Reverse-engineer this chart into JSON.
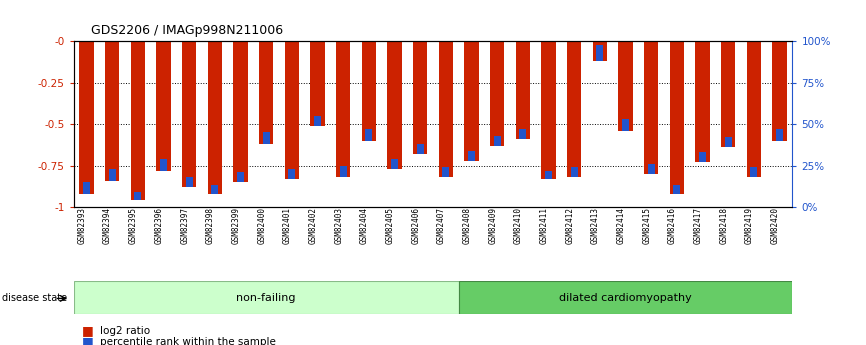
{
  "title": "GDS2206 / IMAGp998N211006",
  "categories": [
    "GSM82393",
    "GSM82394",
    "GSM82395",
    "GSM82396",
    "GSM82397",
    "GSM82398",
    "GSM82399",
    "GSM82400",
    "GSM82401",
    "GSM82402",
    "GSM82403",
    "GSM82404",
    "GSM82405",
    "GSM82406",
    "GSM82407",
    "GSM82408",
    "GSM82409",
    "GSM82410",
    "GSM82411",
    "GSM82412",
    "GSM82413",
    "GSM82414",
    "GSM82415",
    "GSM82416",
    "GSM82417",
    "GSM82418",
    "GSM82419",
    "GSM82420"
  ],
  "log2_ratio": [
    -0.92,
    -0.84,
    -0.96,
    -0.78,
    -0.88,
    -0.92,
    -0.85,
    -0.62,
    -0.83,
    -0.51,
    -0.82,
    -0.6,
    -0.77,
    -0.68,
    -0.82,
    -0.72,
    -0.63,
    -0.59,
    -0.83,
    -0.82,
    -0.12,
    -0.54,
    -0.8,
    -0.92,
    -0.73,
    -0.64,
    -0.82,
    -0.6
  ],
  "percentile_height": [
    0.07,
    0.07,
    0.05,
    0.07,
    0.06,
    0.05,
    0.06,
    0.07,
    0.06,
    0.06,
    0.07,
    0.07,
    0.06,
    0.06,
    0.06,
    0.06,
    0.06,
    0.06,
    0.05,
    0.06,
    0.1,
    0.07,
    0.06,
    0.05,
    0.06,
    0.06,
    0.06,
    0.07
  ],
  "non_failing_count": 15,
  "group_labels": [
    "non-failing",
    "dilated cardiomyopathy"
  ],
  "group_color_nf": "#ccffcc",
  "group_color_dc": "#66cc66",
  "group_edge_nf": "#88bb88",
  "group_edge_dc": "#448844",
  "bar_color_red": "#cc2200",
  "bar_color_blue": "#2255cc",
  "left_axis_color": "#cc2200",
  "right_axis_color": "#2255cc",
  "yticks_left": [
    0.0,
    -0.25,
    -0.5,
    -0.75,
    -1.0
  ],
  "ytick_labels_left": [
    "-0",
    "-0.25",
    "-0.5",
    "-0.75",
    "-1"
  ],
  "yticks_right": [
    0,
    25,
    50,
    75,
    100
  ],
  "ytick_labels_right": [
    "0%",
    "25%",
    "50%",
    "75%",
    "100%"
  ],
  "legend_log2": "log2 ratio",
  "legend_pct": "percentile rank within the sample",
  "disease_state_label": "disease state"
}
